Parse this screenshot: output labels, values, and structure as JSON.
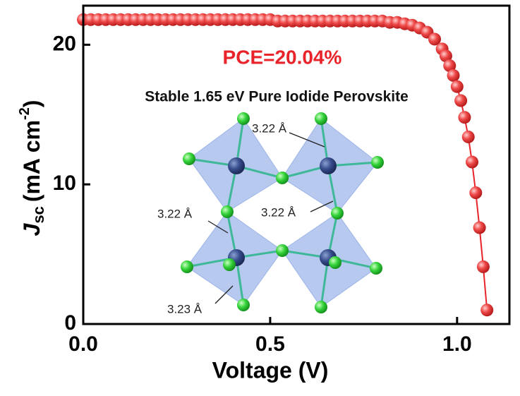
{
  "chart_data": {
    "type": "line",
    "ylabel": {
      "symbol": "J",
      "subscript": "sc",
      "unit": "(mA cm",
      "exponent": "-2",
      "close": ")"
    },
    "xlabel": "Voltage (V)",
    "annotations": {
      "pce": "PCE=20.04%",
      "caption": "Stable 1.65 eV Pure Iodide Perovskite",
      "bonds": [
        "3.22 Å",
        "3.22 Å",
        "3.22 Å",
        "3.23 Å"
      ]
    },
    "color": "#e8232a",
    "x": [
      0,
      0.02,
      0.04,
      0.06,
      0.08,
      0.1,
      0.12,
      0.14,
      0.16,
      0.18,
      0.2,
      0.22,
      0.24,
      0.26,
      0.28,
      0.3,
      0.32,
      0.34,
      0.36,
      0.38,
      0.4,
      0.42,
      0.44,
      0.46,
      0.48,
      0.5,
      0.52,
      0.54,
      0.56,
      0.58,
      0.6,
      0.62,
      0.64,
      0.66,
      0.68,
      0.7,
      0.72,
      0.74,
      0.76,
      0.78,
      0.8,
      0.82,
      0.84,
      0.86,
      0.88,
      0.9,
      0.92,
      0.94,
      0.96,
      0.97,
      0.98,
      0.99,
      1.0,
      1.01,
      1.02,
      1.03,
      1.04,
      1.05,
      1.06,
      1.07,
      1.08
    ],
    "values": [
      21.8,
      21.8,
      21.8,
      21.8,
      21.8,
      21.8,
      21.8,
      21.8,
      21.8,
      21.8,
      21.8,
      21.8,
      21.8,
      21.8,
      21.8,
      21.8,
      21.8,
      21.8,
      21.8,
      21.8,
      21.8,
      21.8,
      21.8,
      21.8,
      21.8,
      21.8,
      21.7,
      21.7,
      21.7,
      21.7,
      21.7,
      21.7,
      21.7,
      21.7,
      21.7,
      21.7,
      21.7,
      21.7,
      21.7,
      21.7,
      21.7,
      21.6,
      21.6,
      21.5,
      21.4,
      21.2,
      20.9,
      20.4,
      19.7,
      19.2,
      18.5,
      17.8,
      17.0,
      16.0,
      14.8,
      13.4,
      11.6,
      9.4,
      6.9,
      4.1,
      1.0
    ],
    "xlim": [
      0,
      1.14
    ],
    "ylim": [
      0,
      22.8
    ],
    "xticks": [
      {
        "value": 0,
        "label": "0.0"
      },
      0.5,
      {
        "value": 1,
        "label": "1.0"
      }
    ],
    "yticks": [
      0,
      10,
      20
    ]
  }
}
